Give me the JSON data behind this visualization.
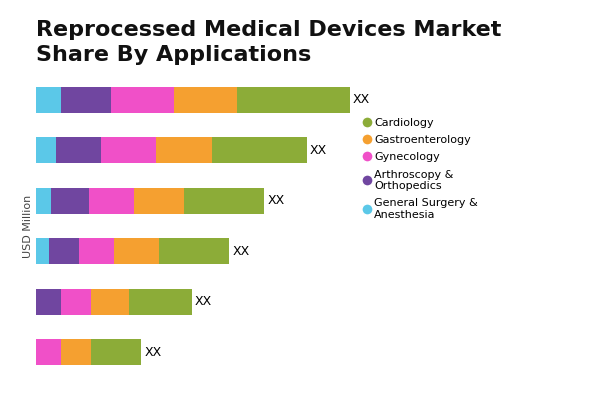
{
  "title": "Reprocessed Medical Devices Market\nShare By Applications",
  "ylabel": "USD Million",
  "bars": [
    [
      1.0,
      2.0,
      2.5,
      2.5,
      4.5
    ],
    [
      0.8,
      1.8,
      2.2,
      2.2,
      3.8
    ],
    [
      0.6,
      1.5,
      1.8,
      2.0,
      3.2
    ],
    [
      0.5,
      1.2,
      1.4,
      1.8,
      2.8
    ],
    [
      0.0,
      1.0,
      1.2,
      1.5,
      2.5
    ],
    [
      0.0,
      0.0,
      1.0,
      1.2,
      2.0
    ]
  ],
  "segment_order": [
    "cyan",
    "purple",
    "magenta",
    "orange",
    "olive"
  ],
  "colors": [
    "#5bc8e8",
    "#7046a0",
    "#f050c8",
    "#f5a030",
    "#8cac38"
  ],
  "legend_labels": [
    "Cardiology",
    "Gastroenterology",
    "Gynecology",
    "Arthroscopy &\nOrthopedics",
    "General Surgery &\nAnesthesia"
  ],
  "legend_colors": [
    "#8cac38",
    "#f5a030",
    "#f050c8",
    "#7046a0",
    "#5bc8e8"
  ],
  "bar_label": "XX",
  "background_color": "#ffffff",
  "title_fontsize": 16,
  "label_fontsize": 10
}
